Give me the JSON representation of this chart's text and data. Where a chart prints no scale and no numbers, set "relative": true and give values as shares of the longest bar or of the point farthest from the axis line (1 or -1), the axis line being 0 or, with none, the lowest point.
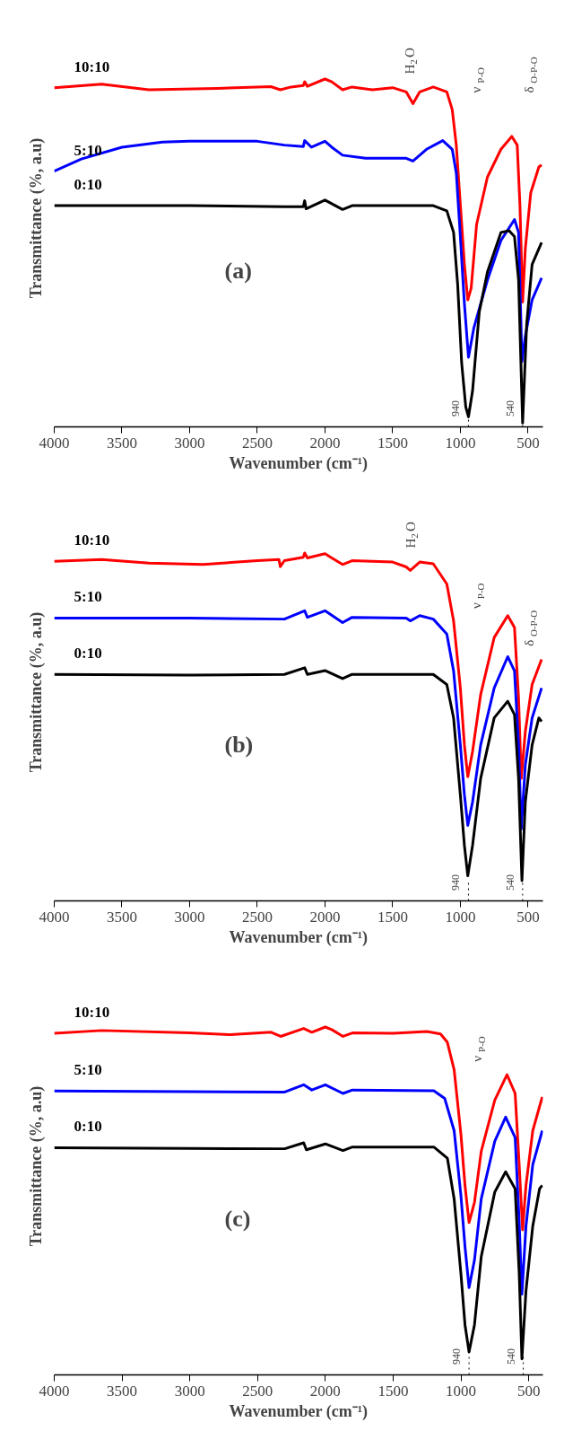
{
  "chart_data": [
    {
      "type": "line",
      "relative": true,
      "xlabel": "Wavenumber (cm⁻¹)",
      "ylabel": "Transmittance (%, a.u)",
      "xlim": [
        4000,
        390
      ],
      "xticks": [
        4000,
        3500,
        3000,
        2500,
        2000,
        1500,
        1000,
        500
      ],
      "annotations": [
        "(a)",
        "H$_{2}$O",
        "ν$_{P-O}$",
        "δ$_{O-P-O}$"
      ],
      "ref_lines": [
        {
          "axis": "x",
          "value": 940,
          "label": "940",
          "line_style": "dotted"
        },
        {
          "axis": "x",
          "value": 540,
          "label": "540",
          "line_style": "dotted"
        }
      ],
      "series": [
        {
          "name": "10:10",
          "color": "#ff0000",
          "x": [
            4000,
            3650,
            3300,
            2800,
            2400,
            2330,
            2250,
            2160,
            2150,
            2130,
            2000,
            1950,
            1870,
            1800,
            1650,
            1500,
            1400,
            1350,
            1300,
            1200,
            1100,
            1060,
            1030,
            1000,
            970,
            945,
            920,
            880,
            800,
            700,
            620,
            580,
            560,
            540,
            520,
            480,
            420,
            400
          ],
          "values": [
            0.975,
            0.985,
            0.969,
            0.973,
            0.978,
            0.969,
            0.977,
            0.981,
            0.992,
            0.979,
            1.0,
            0.992,
            0.969,
            0.977,
            0.969,
            0.975,
            0.963,
            0.929,
            0.963,
            0.977,
            0.963,
            0.912,
            0.81,
            0.639,
            0.467,
            0.365,
            0.399,
            0.582,
            0.718,
            0.798,
            0.835,
            0.81,
            0.639,
            0.359,
            0.513,
            0.673,
            0.747,
            0.753
          ]
        },
        {
          "name": "5:10",
          "color": "#0000ff",
          "x": [
            4000,
            3800,
            3500,
            3200,
            3000,
            2500,
            2300,
            2160,
            2150,
            2100,
            2000,
            1950,
            1870,
            1700,
            1400,
            1350,
            1250,
            1130,
            1060,
            1030,
            1000,
            970,
            940,
            900,
            800,
            700,
            600,
            570,
            545,
            520,
            470,
            400
          ],
          "values": [
            0.735,
            0.77,
            0.804,
            0.819,
            0.821,
            0.821,
            0.81,
            0.806,
            0.823,
            0.804,
            0.821,
            0.804,
            0.781,
            0.772,
            0.772,
            0.764,
            0.798,
            0.823,
            0.798,
            0.73,
            0.547,
            0.353,
            0.2,
            0.285,
            0.422,
            0.536,
            0.596,
            0.559,
            0.188,
            0.262,
            0.365,
            0.428
          ]
        },
        {
          "name": "0:10",
          "color": "#000000",
          "x": [
            4000,
            3000,
            2300,
            2160,
            2150,
            2140,
            2000,
            1870,
            1800,
            1200,
            1100,
            1050,
            1020,
            990,
            960,
            940,
            910,
            860,
            800,
            700,
            640,
            600,
            570,
            540,
            510,
            470,
            400
          ],
          "values": [
            0.636,
            0.636,
            0.633,
            0.633,
            0.65,
            0.627,
            0.652,
            0.625,
            0.636,
            0.636,
            0.621,
            0.559,
            0.41,
            0.182,
            0.057,
            0.029,
            0.103,
            0.331,
            0.445,
            0.559,
            0.564,
            0.547,
            0.422,
            0.011,
            0.296,
            0.467,
            0.53
          ]
        }
      ]
    },
    {
      "type": "line",
      "relative": true,
      "xlabel": "Wavenumber (cm⁻¹)",
      "ylabel": "Transmittance (%, a.u)",
      "xlim": [
        4000,
        390
      ],
      "xticks": [
        4000,
        3500,
        3000,
        2500,
        2000,
        1500,
        1000,
        500
      ],
      "annotations": [
        "(b)",
        "H$_{2}$O",
        "ν$_{P-O}$",
        "δ$_{O-P-O}$"
      ],
      "ref_lines": [
        {
          "axis": "x",
          "value": 940,
          "label": "940",
          "line_style": "dotted"
        },
        {
          "axis": "x",
          "value": 540,
          "label": "540",
          "line_style": "dotted"
        }
      ],
      "series": [
        {
          "name": "10:10",
          "color": "#ff0000",
          "x": [
            4000,
            3650,
            3300,
            2900,
            2500,
            2340,
            2330,
            2300,
            2160,
            2150,
            2130,
            2000,
            1950,
            1870,
            1800,
            1500,
            1400,
            1370,
            1300,
            1200,
            1100,
            1050,
            1000,
            970,
            945,
            910,
            850,
            750,
            650,
            600,
            570,
            550,
            520,
            470,
            400
          ],
          "values": [
            0.976,
            0.981,
            0.971,
            0.967,
            0.978,
            0.981,
            0.961,
            0.978,
            0.988,
            1.0,
            0.986,
            0.998,
            0.986,
            0.967,
            0.978,
            0.974,
            0.96,
            0.95,
            0.974,
            0.969,
            0.911,
            0.805,
            0.612,
            0.448,
            0.357,
            0.429,
            0.593,
            0.757,
            0.82,
            0.786,
            0.583,
            0.352,
            0.487,
            0.622,
            0.694
          ]
        },
        {
          "name": "5:10",
          "color": "#0000ff",
          "x": [
            4000,
            3000,
            2300,
            2150,
            2130,
            2000,
            1870,
            1800,
            1400,
            1370,
            1300,
            1200,
            1100,
            1050,
            1000,
            970,
            945,
            910,
            850,
            750,
            650,
            600,
            570,
            550,
            520,
            470,
            400
          ],
          "values": [
            0.813,
            0.813,
            0.81,
            0.834,
            0.815,
            0.834,
            0.8,
            0.815,
            0.813,
            0.805,
            0.82,
            0.81,
            0.767,
            0.661,
            0.448,
            0.304,
            0.217,
            0.284,
            0.448,
            0.612,
            0.702,
            0.661,
            0.448,
            0.207,
            0.391,
            0.526,
            0.612
          ]
        },
        {
          "name": "0:10",
          "color": "#000000",
          "x": [
            4000,
            3000,
            2300,
            2150,
            2130,
            2000,
            1870,
            1800,
            1200,
            1100,
            1050,
            1000,
            970,
            945,
            910,
            850,
            750,
            650,
            600,
            570,
            545,
            520,
            470,
            420,
            400
          ],
          "values": [
            0.651,
            0.649,
            0.651,
            0.67,
            0.651,
            0.662,
            0.639,
            0.651,
            0.651,
            0.622,
            0.526,
            0.304,
            0.159,
            0.072,
            0.159,
            0.352,
            0.526,
            0.574,
            0.535,
            0.352,
            0.058,
            0.285,
            0.448,
            0.526,
            0.516
          ]
        }
      ]
    },
    {
      "type": "line",
      "relative": true,
      "xlabel": "Wavenumber (cm⁻¹)",
      "ylabel": "Transmittance (%, a.u)",
      "xlim": [
        4000,
        395
      ],
      "xticks": [
        4000,
        3500,
        3000,
        2500,
        2000,
        1500,
        1000,
        500
      ],
      "annotations": [
        "(c)",
        "ν$_{P-O}$"
      ],
      "ref_lines": [
        {
          "axis": "x",
          "value": 940,
          "label": "940",
          "line_style": "dotted"
        },
        {
          "axis": "x",
          "value": 540,
          "label": "540",
          "line_style": "dotted"
        }
      ],
      "series": [
        {
          "name": "10:10",
          "color": "#ff0000",
          "x": [
            4000,
            3650,
            3000,
            2700,
            2400,
            2330,
            2160,
            2100,
            2000,
            1950,
            1870,
            1800,
            1500,
            1250,
            1150,
            1100,
            1050,
            1000,
            970,
            940,
            900,
            850,
            750,
            660,
            600,
            570,
            545,
            520,
            470,
            400
          ],
          "values": [
            0.982,
            0.99,
            0.983,
            0.978,
            0.985,
            0.973,
            0.996,
            0.985,
            1.0,
            0.992,
            0.973,
            0.983,
            0.982,
            0.987,
            0.98,
            0.956,
            0.877,
            0.692,
            0.545,
            0.438,
            0.496,
            0.643,
            0.79,
            0.863,
            0.809,
            0.603,
            0.417,
            0.545,
            0.702,
            0.799
          ]
        },
        {
          "name": "5:10",
          "color": "#0000ff",
          "x": [
            4000,
            3000,
            2300,
            2160,
            2100,
            2000,
            1870,
            1800,
            1200,
            1120,
            1050,
            1000,
            970,
            940,
            900,
            850,
            750,
            670,
            600,
            570,
            550,
            520,
            470,
            400
          ],
          "values": [
            0.816,
            0.814,
            0.813,
            0.834,
            0.819,
            0.834,
            0.809,
            0.819,
            0.817,
            0.795,
            0.702,
            0.516,
            0.369,
            0.251,
            0.33,
            0.506,
            0.672,
            0.741,
            0.682,
            0.438,
            0.232,
            0.428,
            0.604,
            0.702
          ]
        },
        {
          "name": "0:10",
          "color": "#000000",
          "x": [
            4000,
            3000,
            2300,
            2160,
            2140,
            2000,
            1870,
            1800,
            1200,
            1100,
            1050,
            1000,
            970,
            940,
            900,
            850,
            750,
            670,
            600,
            570,
            550,
            520,
            470,
            420,
            400
          ],
          "values": [
            0.653,
            0.651,
            0.65,
            0.667,
            0.647,
            0.664,
            0.645,
            0.655,
            0.655,
            0.623,
            0.506,
            0.291,
            0.144,
            0.066,
            0.144,
            0.34,
            0.526,
            0.584,
            0.535,
            0.291,
            0.046,
            0.242,
            0.428,
            0.535,
            0.545
          ]
        }
      ]
    }
  ]
}
